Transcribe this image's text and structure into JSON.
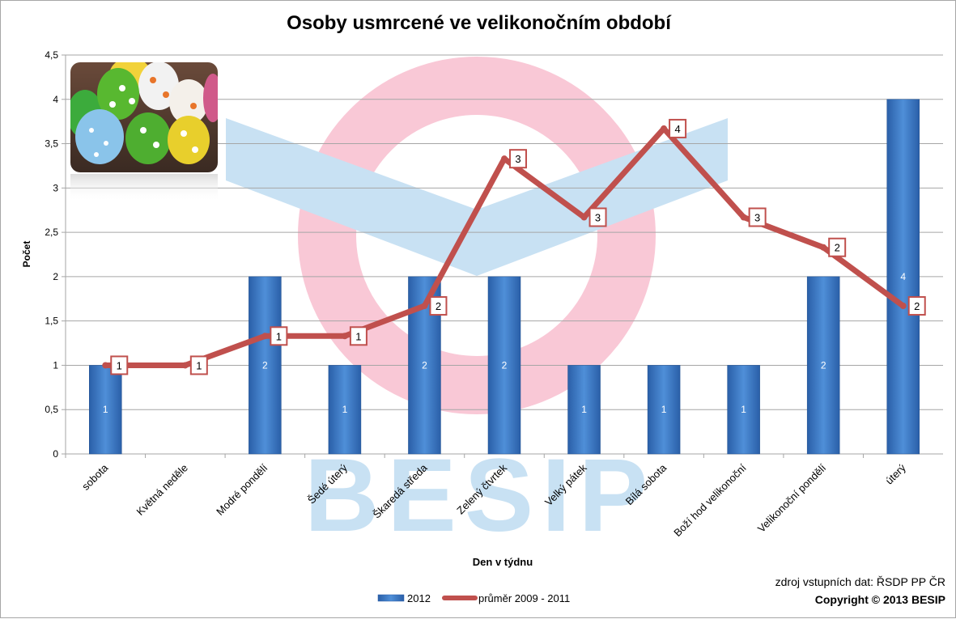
{
  "chart_data": {
    "type": "bar",
    "title": "Osoby usmrcené ve velikonočním období",
    "xlabel": "Den v týdnu",
    "ylabel": "Počet",
    "ylim": [
      0,
      4.5
    ],
    "yticks": [
      "0",
      "0,5",
      "1",
      "1,5",
      "2",
      "2,5",
      "3",
      "3,5",
      "4",
      "4,5"
    ],
    "ytick_values": [
      0,
      0.5,
      1,
      1.5,
      2,
      2.5,
      3,
      3.5,
      4,
      4.5
    ],
    "grid": true,
    "legend_position": "bottom",
    "categories": [
      "sobota",
      "Květná neděle",
      "Modré pondělí",
      "Šedé úterý",
      "Škaredá středa",
      "Zelený čtvrtek",
      "Velký pátek",
      "Bílá sobota",
      "Boží hod velikonoční",
      "Velikonoční pondělí",
      "úterý"
    ],
    "series": [
      {
        "name": "2012",
        "type": "bar",
        "color": "#3b78c4",
        "values": [
          1,
          0,
          2,
          1,
          2,
          2,
          1,
          1,
          1,
          2,
          4
        ],
        "labels": [
          "1",
          "",
          "2",
          "1",
          "2",
          "2",
          "1",
          "1",
          "1",
          "2",
          "4"
        ]
      },
      {
        "name": "průměr 2009 - 2011",
        "type": "line",
        "color": "#c0504d",
        "values": [
          1,
          1,
          1.33,
          1.33,
          1.67,
          3.33,
          2.67,
          3.67,
          2.67,
          2.33,
          1.67
        ],
        "labels": [
          "1",
          "1",
          "1",
          "1",
          "2",
          "3",
          "3",
          "4",
          "3",
          "2",
          "2"
        ]
      }
    ]
  },
  "footer": {
    "source": "zdroj vstupních dat: ŘSDP PP ČR",
    "copyright": "Copyright © 2013 BESIP"
  },
  "watermark": {
    "text": "BESIP",
    "ring_color": "#f9c8d6",
    "chevron_color": "#c8e1f3"
  },
  "photo": {
    "icon": "easter-eggs-photo"
  }
}
